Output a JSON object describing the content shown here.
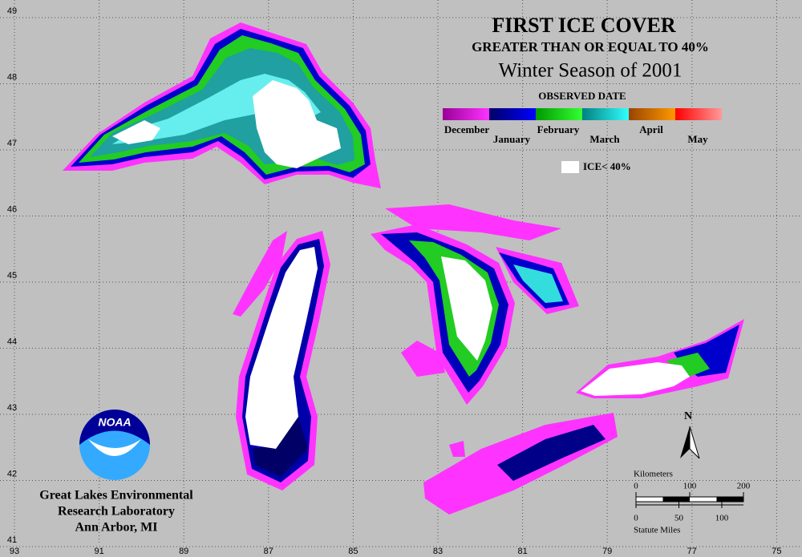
{
  "title": "FIRST ICE COVER",
  "subtitle": "GREATER THAN OR EQUAL TO 40%",
  "season": "Winter Season of 2001",
  "legend": {
    "title": "OBSERVED DATE",
    "months": [
      "December",
      "January",
      "February",
      "March",
      "April",
      "May"
    ],
    "colors": [
      [
        "#990099",
        "#ff33ff"
      ],
      [
        "#000066",
        "#0000ff"
      ],
      [
        "#009900",
        "#33ff33"
      ],
      [
        "#008080",
        "#33ffff"
      ],
      [
        "#994400",
        "#ff9900"
      ],
      [
        "#ff0000",
        "#ff9999"
      ]
    ],
    "ice_label": "ICE< 40%"
  },
  "grid": {
    "longitudes": [
      93,
      91,
      89,
      87,
      85,
      83,
      81,
      79,
      77,
      75
    ],
    "latitudes": [
      49,
      48,
      47,
      46,
      45,
      44,
      43,
      42,
      41
    ]
  },
  "scale": {
    "km_label": "Kilometers",
    "km_ticks": [
      0,
      100,
      200
    ],
    "mile_label": "Statute Miles",
    "mile_ticks": [
      0,
      50,
      100
    ]
  },
  "north": "N",
  "logo": "NOAA",
  "credit": [
    "Great Lakes Environmental",
    "Research Laboratory",
    "Ann Arbor, MI"
  ]
}
